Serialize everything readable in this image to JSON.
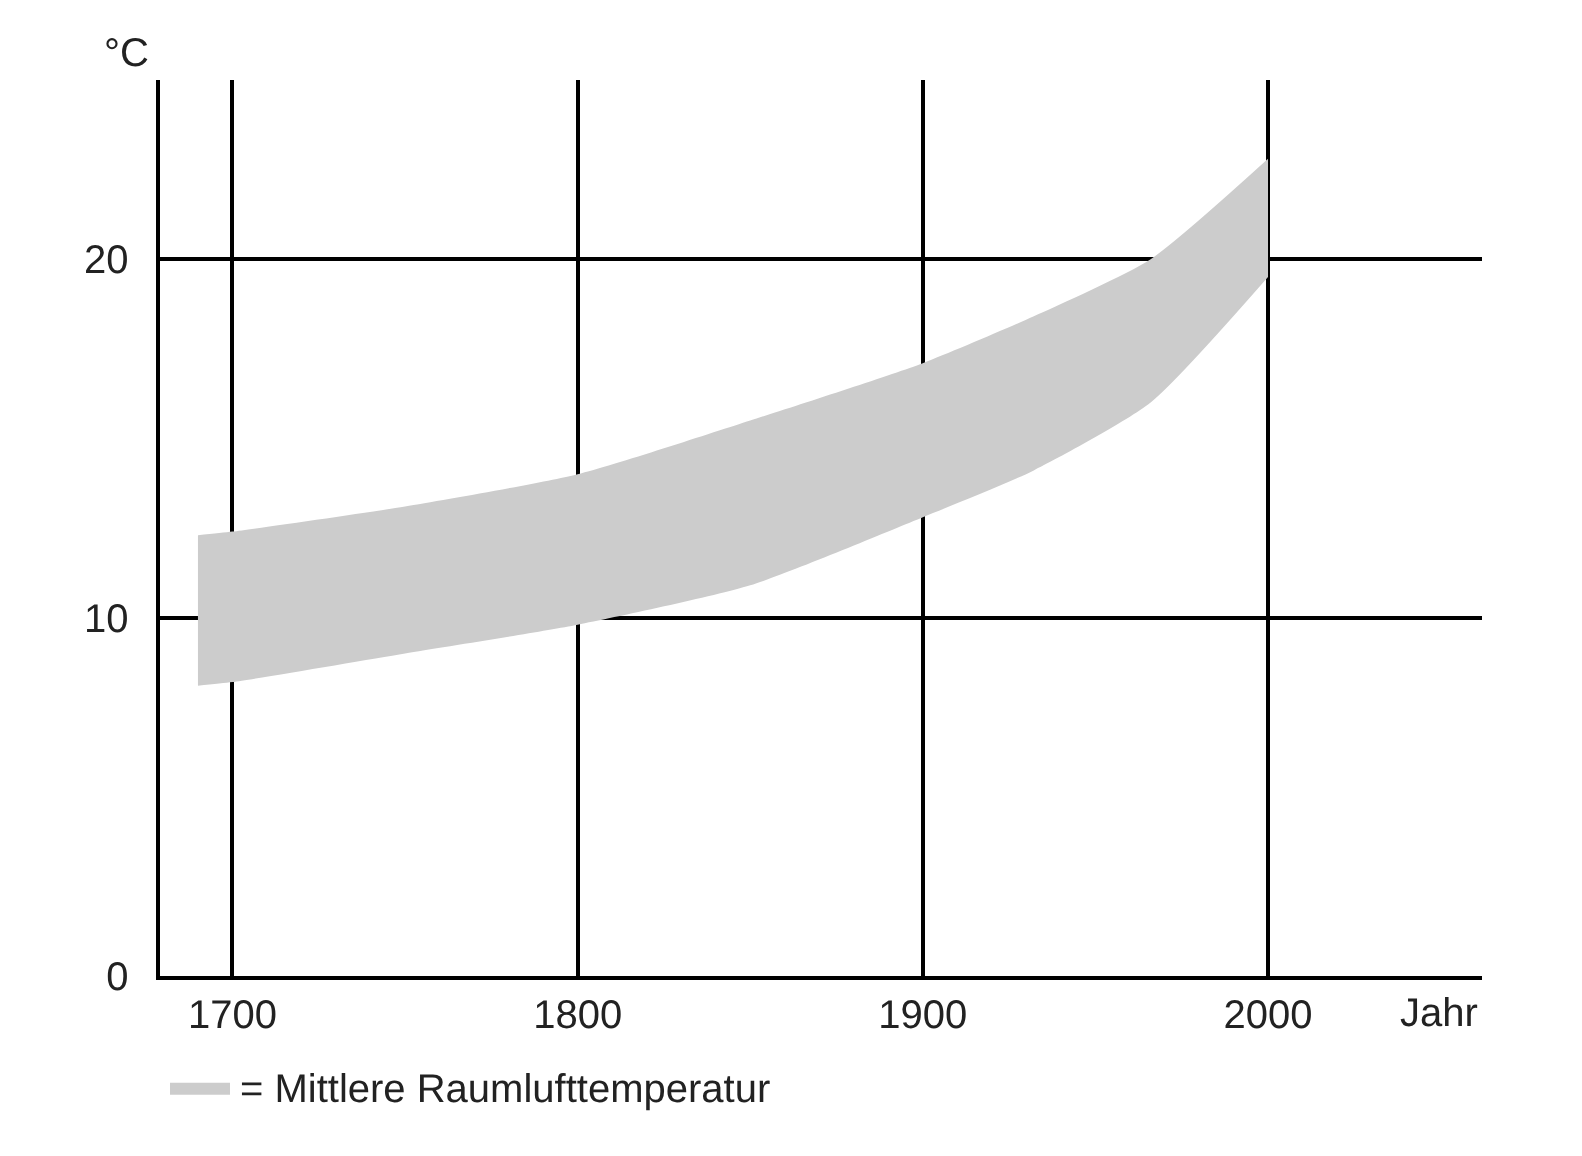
{
  "chart_data": {
    "type": "area",
    "ylabel": "°C",
    "xlabel": "Jahr",
    "x": [
      1690,
      1700,
      1750,
      1800,
      1850,
      1900,
      1932,
      1966,
      2000
    ],
    "series": [
      {
        "name": "= Mittlere Raumlufttemperatur",
        "color": "#cccccc",
        "values": [
          null,
          null,
          null,
          null,
          null,
          null,
          null,
          null,
          null
        ],
        "upper": [
          12.3,
          12.4,
          13.1,
          14.0,
          15.5,
          17.1,
          18.4,
          20.0,
          22.8
        ],
        "lower": [
          8.1,
          8.2,
          9.0,
          9.8,
          10.9,
          12.8,
          14.1,
          16.0,
          19.5
        ]
      }
    ],
    "xlim": [
      1679,
      2062
    ],
    "xticks": [
      1700,
      1800,
      1900,
      2000
    ],
    "ylim": [
      0,
      25
    ],
    "yticks": [
      0,
      10,
      20
    ],
    "grid": true,
    "legend": "bottom left"
  }
}
